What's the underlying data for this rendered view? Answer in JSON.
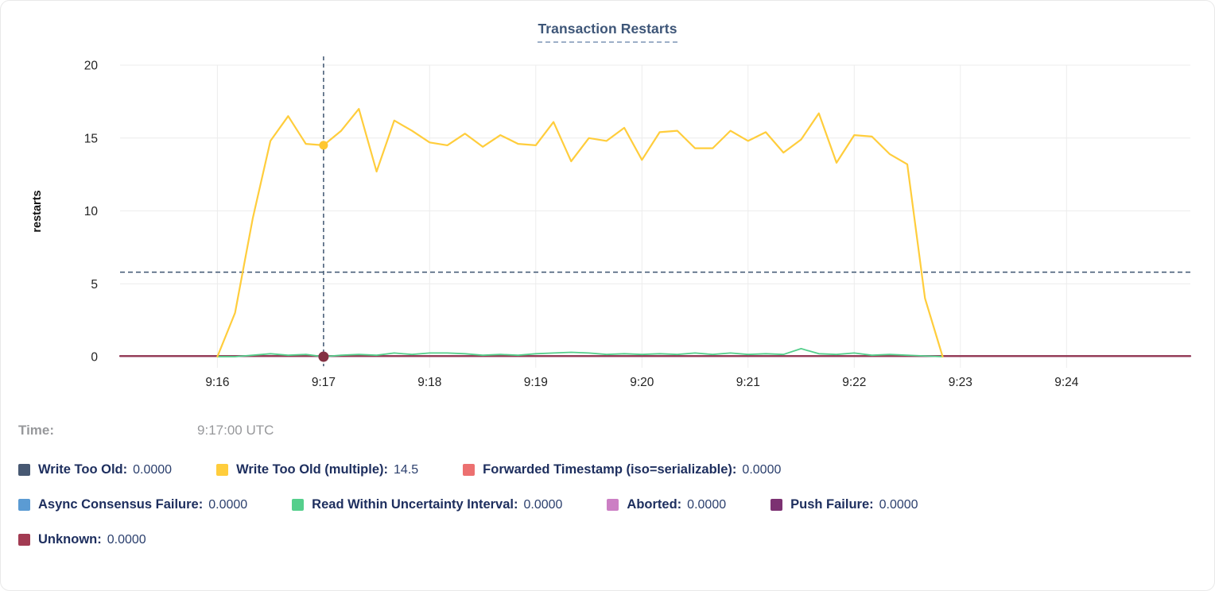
{
  "title": "Transaction Restarts",
  "y_axis": {
    "label": "restarts",
    "ticks": [
      0,
      5,
      10,
      15,
      20
    ],
    "max": 20
  },
  "x_axis": {
    "ticks": [
      "9:16",
      "9:17",
      "9:18",
      "9:19",
      "9:20",
      "9:21",
      "9:22",
      "9:23",
      "9:24"
    ]
  },
  "hover": {
    "time_label": "Time:",
    "time_value": "9:17:00 UTC",
    "time": "9:17:00",
    "crosshair_y": 5.8,
    "hover_points": [
      {
        "series": "Write Too Old (multiple)",
        "value": 14.5,
        "dot_color": "#ffc72e"
      },
      {
        "series": "Unknown",
        "value": 0,
        "dot_color": "#833043"
      }
    ]
  },
  "legend": {
    "rows": [
      [
        {
          "label": "Write Too Old:",
          "value": "0.0000",
          "color": "#475872"
        },
        {
          "label": "Write Too Old (multiple):",
          "value": "14.5",
          "color": "#ffcd3c"
        },
        {
          "label": "Forwarded Timestamp (iso=serializable):",
          "value": "0.0000",
          "color": "#ec7070"
        }
      ],
      [
        {
          "label": "Async Consensus Failure:",
          "value": "0.0000",
          "color": "#5b9bd3"
        },
        {
          "label": "Read Within Uncertainty Interval:",
          "value": "0.0000",
          "color": "#55cf8c"
        },
        {
          "label": "Aborted:",
          "value": "0.0000",
          "color": "#cc7fc4"
        },
        {
          "label": "Push Failure:",
          "value": "0.0000",
          "color": "#7c3172"
        }
      ],
      [
        {
          "label": "Unknown:",
          "value": "0.0000",
          "color": "#a23b52"
        }
      ]
    ]
  },
  "chart_data": {
    "type": "line",
    "title": "Transaction Restarts",
    "ylabel": "restarts",
    "ylim": [
      0,
      20
    ],
    "yticks": [
      0,
      5,
      10,
      15,
      20
    ],
    "xticks": [
      "9:16",
      "9:17",
      "9:18",
      "9:19",
      "9:20",
      "9:21",
      "9:22",
      "9:23",
      "9:24"
    ],
    "x_range": [
      "9:15:05",
      "9:25:10"
    ],
    "grid": true,
    "legend_position": "bottom",
    "x": [
      "9:16:00",
      "9:16:10",
      "9:16:20",
      "9:16:30",
      "9:16:40",
      "9:16:50",
      "9:17:00",
      "9:17:10",
      "9:17:20",
      "9:17:30",
      "9:17:40",
      "9:17:50",
      "9:18:00",
      "9:18:10",
      "9:18:20",
      "9:18:30",
      "9:18:40",
      "9:18:50",
      "9:19:00",
      "9:19:10",
      "9:19:20",
      "9:19:30",
      "9:19:40",
      "9:19:50",
      "9:20:00",
      "9:20:10",
      "9:20:20",
      "9:20:30",
      "9:20:40",
      "9:20:50",
      "9:21:00",
      "9:21:10",
      "9:21:20",
      "9:21:30",
      "9:21:40",
      "9:21:50",
      "9:22:00",
      "9:22:10",
      "9:22:20",
      "9:22:30",
      "9:22:40",
      "9:22:50"
    ],
    "series": [
      {
        "name": "Write Too Old",
        "color": "#475872",
        "values": "zero"
      },
      {
        "name": "Write Too Old (multiple)",
        "color": "#ffcd3c",
        "values": [
          0,
          3.0,
          9.5,
          14.8,
          16.5,
          14.6,
          14.5,
          15.5,
          17.0,
          12.7,
          16.2,
          15.5,
          14.7,
          14.5,
          15.3,
          14.4,
          15.2,
          14.6,
          14.5,
          16.1,
          13.4,
          15.0,
          14.8,
          15.7,
          13.5,
          15.4,
          15.5,
          14.3,
          14.3,
          15.5,
          14.8,
          15.4,
          14.0,
          14.9,
          16.7,
          13.3,
          15.2,
          15.1,
          13.9,
          13.2,
          4.0,
          0
        ]
      },
      {
        "name": "Forwarded Timestamp (iso=serializable)",
        "color": "#ec7070",
        "values": "zero"
      },
      {
        "name": "Async Consensus Failure",
        "color": "#5b9bd3",
        "values": "zero"
      },
      {
        "name": "Read Within Uncertainty Interval",
        "color": "#55cf8c",
        "values": [
          0,
          0,
          0.1,
          0.2,
          0.1,
          0.15,
          0,
          0.1,
          0.15,
          0.1,
          0.25,
          0.15,
          0.25,
          0.25,
          0.2,
          0.1,
          0.15,
          0.1,
          0.2,
          0.25,
          0.3,
          0.25,
          0.15,
          0.2,
          0.15,
          0.2,
          0.15,
          0.25,
          0.15,
          0.25,
          0.15,
          0.2,
          0.15,
          0.55,
          0.2,
          0.15,
          0.25,
          0.1,
          0.15,
          0.1,
          0.05,
          0
        ]
      },
      {
        "name": "Aborted",
        "color": "#cc7fc4",
        "values": "zero"
      },
      {
        "name": "Push Failure",
        "color": "#7c3172",
        "values": "zero"
      },
      {
        "name": "Unknown",
        "color": "#96394e",
        "values": "zero"
      }
    ]
  },
  "colors": {
    "grid": "#ececec",
    "crosshair": "#3d5470",
    "axis_text": "#232323",
    "title": "#3e5678"
  }
}
